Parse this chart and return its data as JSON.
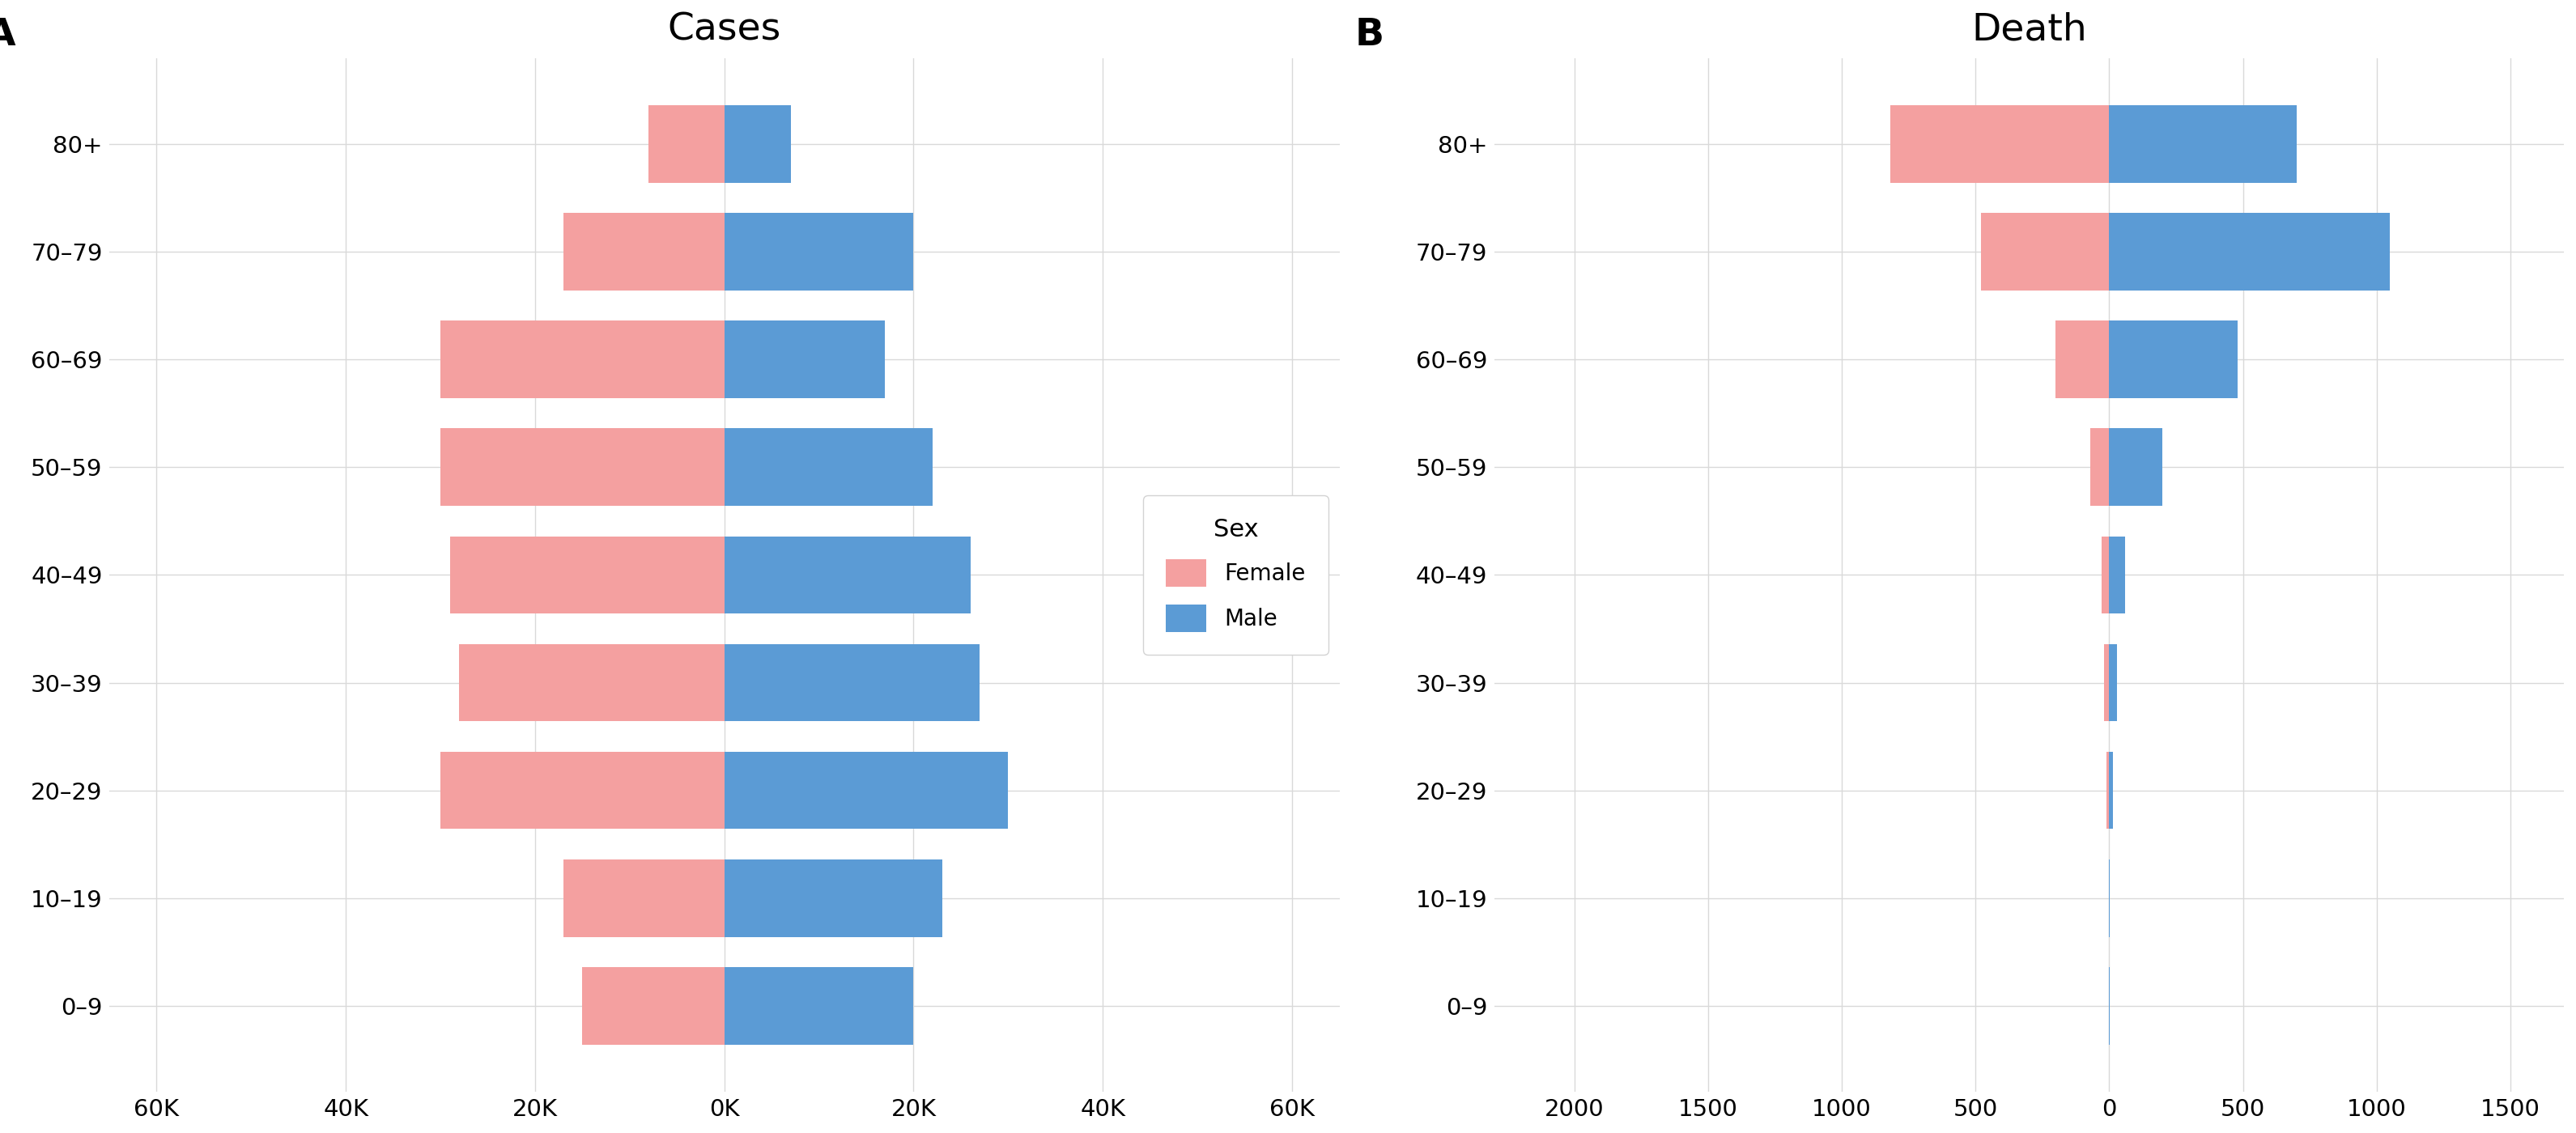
{
  "age_groups": [
    "0–9",
    "10–19",
    "20–29",
    "30–39",
    "40–49",
    "50–59",
    "60–69",
    "70–79",
    "80+"
  ],
  "cases_female": [
    15000,
    17000,
    30000,
    28000,
    29000,
    30000,
    30000,
    17000,
    8000
  ],
  "cases_male": [
    20000,
    23000,
    30000,
    27000,
    26000,
    22000,
    17000,
    20000,
    7000
  ],
  "death_female": [
    1,
    2,
    10,
    20,
    30,
    70,
    200,
    480,
    820
  ],
  "death_male": [
    1,
    2,
    15,
    30,
    60,
    200,
    480,
    1050,
    700
  ],
  "female_color": "#F4A0A0",
  "male_color": "#5B9BD5",
  "background_color": "#FFFFFF",
  "grid_color": "#D9D9D9",
  "title_cases": "Cases",
  "title_death": "Death",
  "label_A": "A",
  "label_B": "B",
  "legend_title": "Sex",
  "legend_female": "Female",
  "legend_male": "Male",
  "cases_xlim": [
    -65000,
    65000
  ],
  "cases_xticks": [
    -60000,
    -40000,
    -20000,
    0,
    20000,
    40000,
    60000
  ],
  "cases_xticklabels": [
    "60K",
    "40K",
    "20K",
    "0K",
    "20K",
    "40K",
    "60K"
  ],
  "death_xlim": [
    -2300,
    1700
  ],
  "death_xticks": [
    -2000,
    -1500,
    -1000,
    -500,
    0,
    500,
    1000,
    1500
  ],
  "death_xticklabels": [
    "2000",
    "1500",
    "1000",
    "500",
    "0",
    "500",
    "1000",
    "1500"
  ]
}
